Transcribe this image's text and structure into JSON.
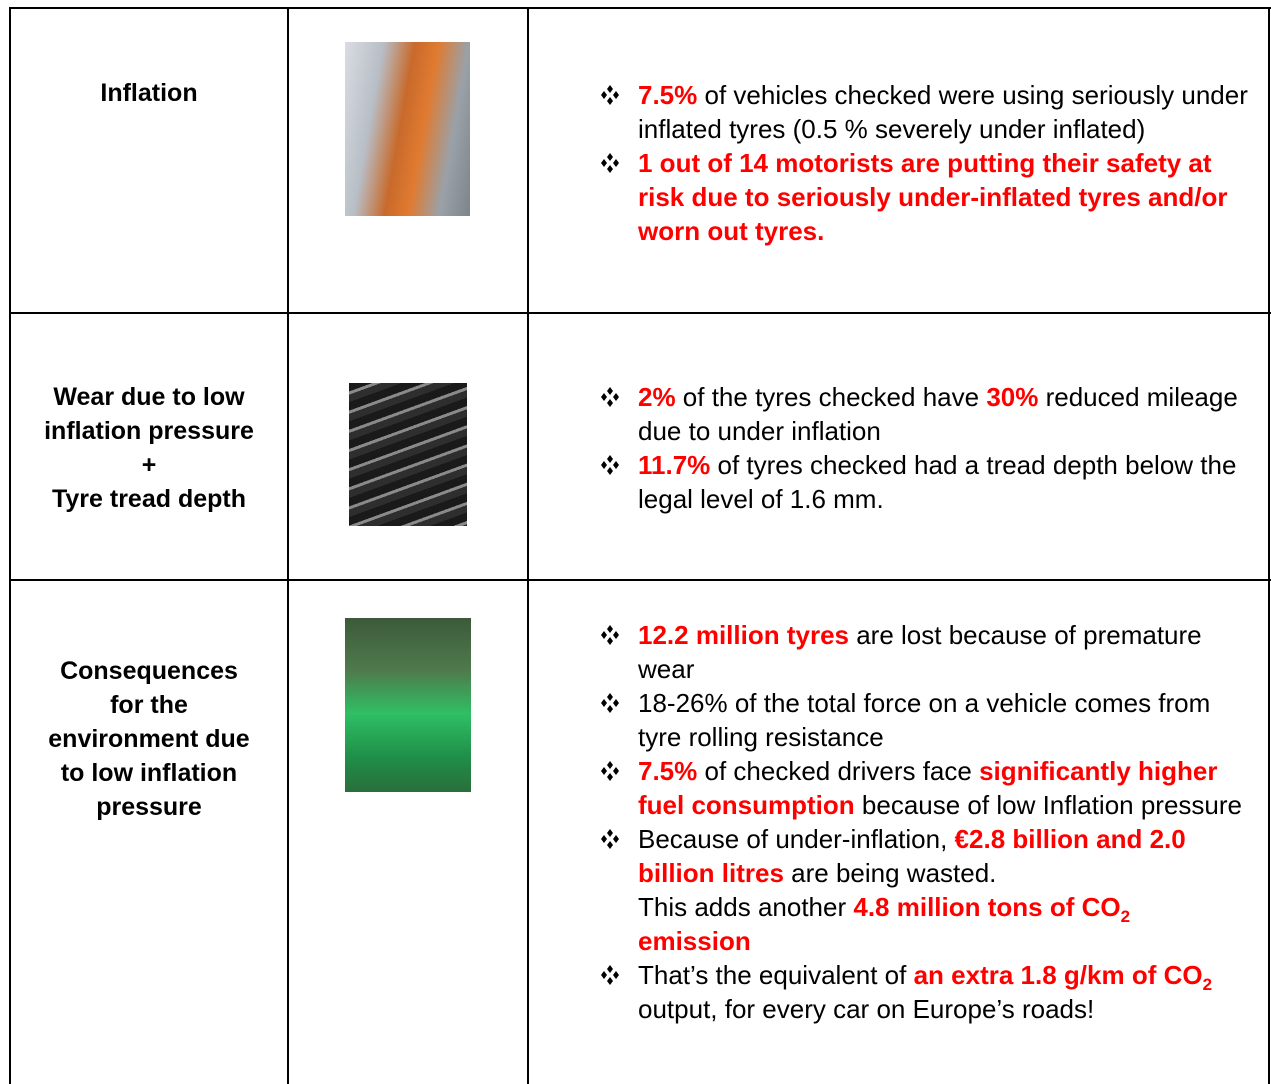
{
  "table": {
    "rows": [
      {
        "label": [
          "Inflation"
        ],
        "bullets": [
          [
            [
              {
                "text": "7.5%",
                "red": true
              },
              {
                "text": " of vehicles checked were using seriously under inflated tyres (0.5 % severely under inflated)"
              }
            ]
          ],
          [
            [
              {
                "text": "1 out of 14 motorists are putting their safety at risk due to seriously under-inflated tyres and/or worn out tyres.",
                "red": true
              }
            ]
          ]
        ]
      },
      {
        "label": [
          "Wear due to low",
          "inflation pressure",
          "+",
          "Tyre tread depth"
        ],
        "bullets": [
          [
            [
              {
                "text": "2%",
                "red": true
              },
              {
                "text": " of the tyres checked have "
              },
              {
                "text": "30%",
                "red": true
              },
              {
                "text": " reduced mileage due to under inflation"
              }
            ]
          ],
          [
            [
              {
                "text": "11.7%",
                "red": true
              },
              {
                "text": " of tyres checked had a tread depth below the legal level of 1.6 mm."
              }
            ]
          ]
        ]
      },
      {
        "label": [
          "Consequences",
          "for the",
          "environment due",
          "to low inflation",
          "pressure"
        ],
        "bullets": [
          [
            [
              {
                "text": "12.2 million tyres",
                "red": true
              },
              {
                "text": " are lost because of premature wear"
              }
            ]
          ],
          [
            [
              {
                "text": "18-26% of the total force on a vehicle comes from tyre rolling resistance"
              }
            ]
          ],
          [
            [
              {
                "text": "7.5%",
                "red": true
              },
              {
                "text": " of checked drivers face "
              },
              {
                "text": "significantly higher fuel consumption",
                "red": true
              },
              {
                "text": " because of low Inflation pressure"
              }
            ]
          ],
          [
            [
              {
                "text": "Because of under-inflation, "
              },
              {
                "text": "€2.8 billion and 2.0 billion litres",
                "red": true
              },
              {
                "text": " are being wasted."
              }
            ],
            [
              {
                "text": "This adds another "
              },
              {
                "text": "4.8 million tons of CO",
                "red": true
              },
              {
                "text": "2",
                "red": true,
                "sub": true
              },
              {
                "text": " emission",
                "red": true
              }
            ]
          ],
          [
            [
              {
                "text": "That’s the equivalent of "
              },
              {
                "text": "an extra 1.8 g/km of CO",
                "red": true
              },
              {
                "text": "2",
                "red": true,
                "sub": true
              },
              {
                "text": " output, for every car on Europe’s roads!"
              }
            ]
          ]
        ]
      }
    ]
  }
}
